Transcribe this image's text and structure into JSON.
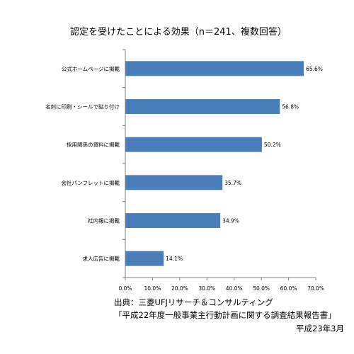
{
  "chart_data": {
    "type": "bar",
    "orientation": "horizontal",
    "title": "認定を受けたことによる効果（n＝241、複数回答）",
    "categories": [
      "公式ホームページに掲載",
      "名刺に印刷・シールで貼り付け",
      "採用関係の資料に掲載",
      "会社パンフレットに掲載",
      "社内報に掲載",
      "求人広告に掲載"
    ],
    "values": [
      65.6,
      56.8,
      50.2,
      35.7,
      34.9,
      14.1
    ],
    "value_labels": [
      "65.6%",
      "56.8%",
      "50.2%",
      "35.7%",
      "34.9%",
      "14.1%"
    ],
    "xlim": [
      0,
      70
    ],
    "x_ticks": [
      "0.0%",
      "10.0%",
      "20.0%",
      "30.0%",
      "40.0%",
      "50.0%",
      "60.0%",
      "70.0%"
    ],
    "grid": false,
    "legend": "none",
    "bar_color": "#4a7ebb"
  },
  "source": {
    "line1": "出典：三菱UFJリサーチ＆コンサルティング",
    "line2": "「平成22年度一般事業主行動計画に関する調査結果報告書」",
    "line3": "平成23年3月"
  }
}
